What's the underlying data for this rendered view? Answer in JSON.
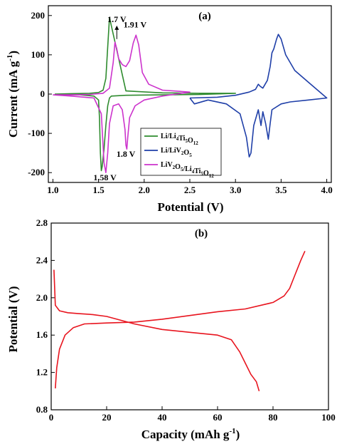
{
  "chart_data": [
    {
      "panel_label": "(a)",
      "type": "line",
      "xlabel": "Potential (V)",
      "ylabel": "Current (mA g-1)",
      "ylabel_main": "Current (mA g",
      "ylabel_sup": "-1",
      "ylabel_end": ")",
      "xlim": [
        0.95,
        4.05
      ],
      "ylim": [
        -225,
        225
      ],
      "x_ticks": [
        1.0,
        1.5,
        2.0,
        2.5,
        3.0,
        3.5,
        4.0
      ],
      "x_tick_labels": [
        "1.0",
        "1.5",
        "2.0",
        "2.5",
        "3.0",
        "3.5",
        "4.0"
      ],
      "y_ticks": [
        -200,
        -100,
        0,
        100,
        200
      ],
      "y_tick_labels": [
        "-200",
        "-100",
        "0",
        "100",
        "200"
      ],
      "legend_placement": "lower-center",
      "annotations": [
        {
          "text": "1.7 V",
          "x": 1.7,
          "y": 183
        },
        {
          "text": "1.91 V",
          "x": 1.9,
          "y": 170
        },
        {
          "text": "1.8 V",
          "x": 1.8,
          "y": -160
        },
        {
          "text": "1.58 V",
          "x": 1.57,
          "y": -220
        }
      ],
      "series": [
        {
          "name": "Li/Li4Ti5O12",
          "legend_parts": [
            [
              "Li/Li",
              ""
            ],
            [
              "4",
              "sub"
            ],
            [
              "Ti",
              ""
            ],
            [
              "5",
              "sub"
            ],
            [
              "O",
              ""
            ],
            [
              "12",
              "sub"
            ]
          ],
          "color": "#2e8b2e",
          "x": [
            1.02,
            1.2,
            1.4,
            1.5,
            1.55,
            1.58,
            1.6,
            1.62,
            1.8,
            2.2,
            2.6,
            3.0,
            2.6,
            2.2,
            1.8,
            1.64,
            1.62,
            1.6,
            1.58,
            1.56,
            1.54,
            1.53,
            1.52,
            1.51,
            1.5,
            1.45,
            1.3,
            1.1,
            1.02
          ],
          "y": [
            0,
            1,
            2,
            4,
            10,
            40,
            120,
            195,
            8,
            3,
            2,
            2,
            -1,
            -2,
            -3,
            -5,
            -10,
            -30,
            -80,
            -140,
            -185,
            -195,
            -150,
            -60,
            -15,
            -5,
            -2,
            -1,
            0
          ]
        },
        {
          "name": "Li/LiV2O5",
          "legend_parts": [
            [
              "Li/LiV",
              ""
            ],
            [
              "2",
              "sub"
            ],
            [
              "O",
              ""
            ],
            [
              "5",
              "sub"
            ]
          ],
          "color": "#1f3fa8",
          "x": [
            2.5,
            2.8,
            3.0,
            3.15,
            3.22,
            3.25,
            3.27,
            3.3,
            3.35,
            3.38,
            3.4,
            3.42,
            3.45,
            3.47,
            3.5,
            3.55,
            3.65,
            3.8,
            4.0,
            3.8,
            3.6,
            3.5,
            3.4,
            3.38,
            3.36,
            3.33,
            3.3,
            3.28,
            3.25,
            3.2,
            3.17,
            3.15,
            3.12,
            3.05,
            2.9,
            2.7,
            2.55,
            2.5
          ],
          "y": [
            -10,
            -8,
            -3,
            5,
            12,
            25,
            20,
            15,
            35,
            70,
            105,
            115,
            140,
            152,
            140,
            100,
            60,
            30,
            -10,
            -15,
            -20,
            -25,
            -40,
            -75,
            -115,
            -75,
            -45,
            -80,
            -40,
            -80,
            -150,
            -160,
            -110,
            -50,
            -25,
            -15,
            -25,
            -10
          ]
        },
        {
          "name": "LiV2O5/Li4Ti5O12",
          "legend_parts": [
            [
              "LiV",
              ""
            ],
            [
              "2",
              "sub"
            ],
            [
              "O",
              ""
            ],
            [
              "5",
              "sub"
            ],
            [
              "/Li",
              ""
            ],
            [
              "4",
              "sub"
            ],
            [
              "Ti",
              ""
            ],
            [
              "5",
              "sub"
            ],
            [
              "O",
              ""
            ],
            [
              "12",
              "sub"
            ]
          ],
          "color": "#cc33cc",
          "x": [
            1.0,
            1.2,
            1.4,
            1.55,
            1.62,
            1.66,
            1.68,
            1.7,
            1.72,
            1.76,
            1.8,
            1.84,
            1.88,
            1.91,
            1.94,
            1.98,
            2.05,
            2.2,
            2.5,
            2.2,
            2.0,
            1.9,
            1.84,
            1.82,
            1.81,
            1.8,
            1.79,
            1.76,
            1.72,
            1.66,
            1.62,
            1.6,
            1.58,
            1.56,
            1.53,
            1.45,
            1.2,
            1.0
          ],
          "y": [
            -2,
            -2,
            -1,
            2,
            15,
            80,
            132,
            115,
            90,
            75,
            70,
            85,
            130,
            150,
            125,
            55,
            25,
            10,
            5,
            -5,
            -15,
            -30,
            -60,
            -110,
            -140,
            -130,
            -90,
            -40,
            -25,
            -30,
            -75,
            -150,
            -200,
            -175,
            -50,
            -10,
            -5,
            -2
          ]
        }
      ]
    },
    {
      "panel_label": "(b)",
      "type": "line",
      "xlabel": "Capacity (mAh g-1)",
      "xlabel_main": "Capacity (mAh g",
      "xlabel_sup": "-1",
      "xlabel_end": ")",
      "ylabel": "Potential (V)",
      "xlim": [
        0,
        100
      ],
      "ylim": [
        0.8,
        2.8
      ],
      "x_ticks": [
        0,
        20,
        40,
        60,
        80,
        100
      ],
      "x_tick_labels": [
        "0",
        "20",
        "40",
        "60",
        "80",
        "100"
      ],
      "y_ticks": [
        0.8,
        1.2,
        1.6,
        2.0,
        2.4,
        2.8
      ],
      "y_tick_labels": [
        "0.8",
        "1.2",
        "1.6",
        "2.0",
        "2.4",
        "2.8"
      ],
      "series": [
        {
          "color": "#e8141e",
          "x": [
            1,
            1.5,
            3,
            6,
            10,
            15,
            20,
            30,
            40,
            50,
            60,
            65,
            68,
            70,
            72,
            74,
            75
          ],
          "y": [
            2.3,
            1.92,
            1.86,
            1.84,
            1.83,
            1.82,
            1.8,
            1.72,
            1.66,
            1.63,
            1.6,
            1.55,
            1.42,
            1.3,
            1.18,
            1.1,
            1.0
          ]
        },
        {
          "color": "#e8141e",
          "x": [
            1.5,
            2,
            3,
            5,
            8,
            12,
            20,
            30,
            40,
            50,
            60,
            70,
            80,
            84,
            86,
            88,
            90,
            91.5
          ],
          "y": [
            1.03,
            1.25,
            1.45,
            1.6,
            1.68,
            1.72,
            1.73,
            1.74,
            1.77,
            1.81,
            1.85,
            1.88,
            1.95,
            2.02,
            2.1,
            2.25,
            2.4,
            2.5
          ]
        }
      ]
    }
  ]
}
